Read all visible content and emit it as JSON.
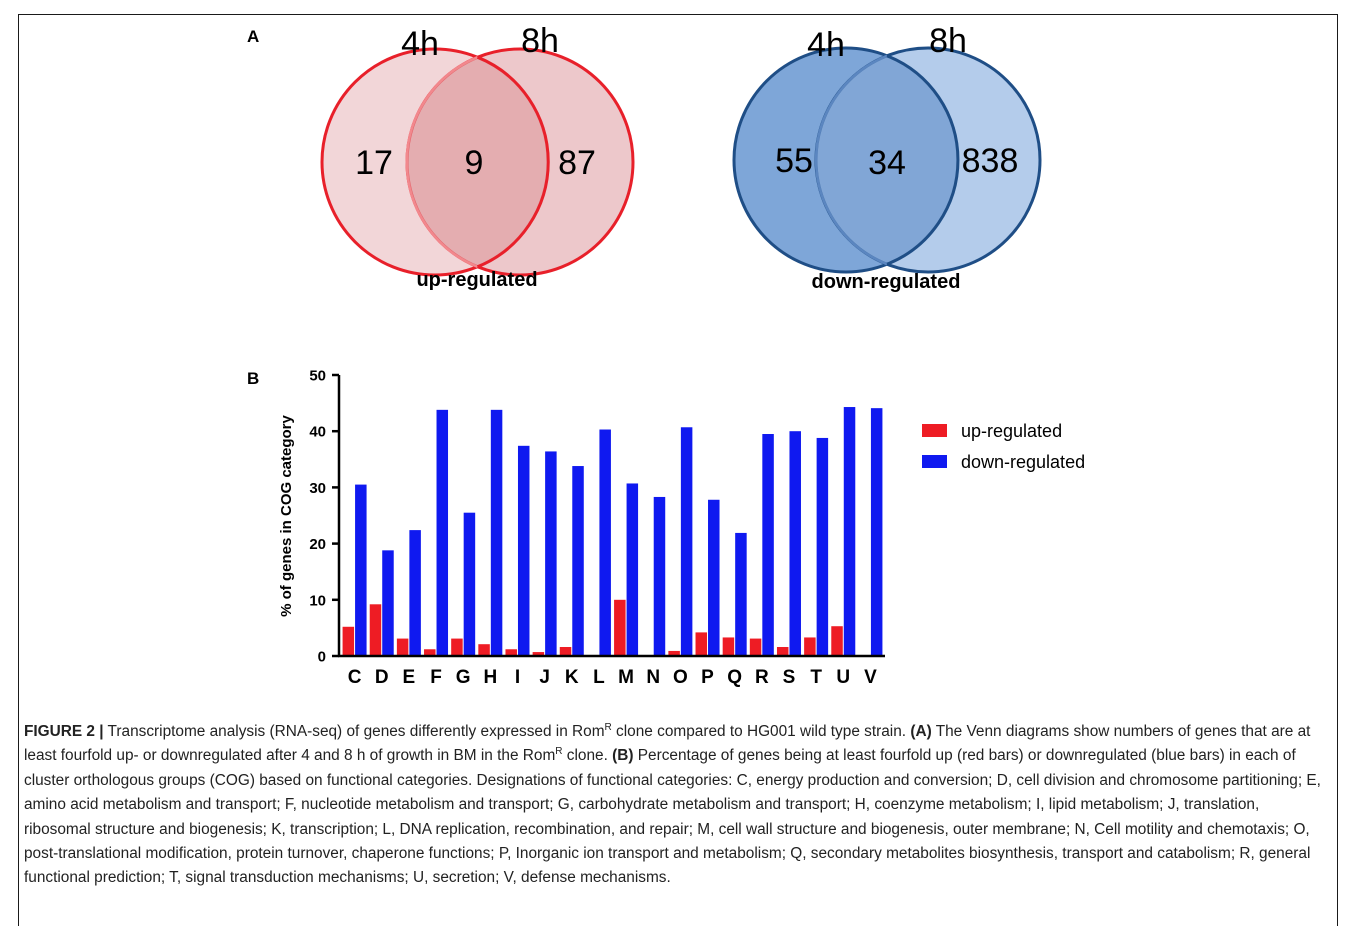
{
  "panel_a": {
    "label": "A",
    "venns": [
      {
        "left_title": "4h",
        "right_title": "8h",
        "left_only": "17",
        "overlap": "9",
        "right_only": "87",
        "caption": "up-regulated",
        "colors": {
          "left_fill": "#f2d6d8",
          "right_fill": "#e7b6ba",
          "overlap_fill": "#de9ea3",
          "stroke": "#e8202a"
        }
      },
      {
        "left_title": "4h",
        "right_title": "8h",
        "left_only": "55",
        "overlap": "34",
        "right_only": "838",
        "caption": "down-regulated",
        "colors": {
          "left_fill": "#7ea6d8",
          "right_fill": "#a7c3e7",
          "overlap_fill": "#6d96cc",
          "stroke": "#1f4e86"
        }
      }
    ]
  },
  "panel_b": {
    "label": "B",
    "chart_data": {
      "type": "bar",
      "categories": [
        "C",
        "D",
        "E",
        "F",
        "G",
        "H",
        "I",
        "J",
        "K",
        "L",
        "M",
        "N",
        "O",
        "P",
        "Q",
        "R",
        "S",
        "T",
        "U",
        "V"
      ],
      "series": [
        {
          "name": "up-regulated",
          "color": "#ee1c24",
          "values": [
            5.2,
            9.2,
            3.1,
            1.2,
            3.1,
            2.1,
            1.2,
            0.7,
            1.6,
            0,
            10.0,
            0,
            0.9,
            4.2,
            3.3,
            3.1,
            1.6,
            3.3,
            5.3,
            0
          ]
        },
        {
          "name": "down-regulated",
          "color": "#0f19f0",
          "values": [
            30.5,
            18.8,
            22.4,
            43.8,
            25.5,
            43.8,
            37.4,
            36.4,
            33.8,
            40.3,
            30.7,
            28.3,
            40.7,
            27.8,
            21.9,
            39.5,
            40.0,
            38.8,
            44.3,
            44.1
          ]
        }
      ],
      "ylabel": "% of genes in COG category",
      "ylim": [
        0,
        50
      ],
      "yticks": [
        "0",
        "10",
        "20",
        "30",
        "40",
        "50"
      ],
      "legend_position": "right"
    }
  },
  "caption": {
    "figure_label": "FIGURE 2 |",
    "intro_before_sup": " Transcriptome analysis (RNA-seq) of genes differently expressed in Rom",
    "sup_1": "R",
    "intro_after_sup": " clone compared to HG001 wild type strain. ",
    "a_label": "(A)",
    "a_before_sup": " The Venn diagrams show numbers of genes that are at least fourfold up- or downregulated after 4 and 8 h of growth in BM in the Rom",
    "sup_2": "R",
    "a_after_sup": " clone. ",
    "b_label": "(B)",
    "b_text": " Percentage of genes being at least fourfold up (red bars) or downregulated (blue bars) in each of cluster orthologous groups (COG) based on functional categories. Designations of functional categories: C, energy production and conversion; D, cell division and chromosome partitioning; E, amino acid metabolism and transport; F, nucleotide metabolism and transport; G, carbohydrate metabolism and transport; H, coenzyme metabolism; I, lipid metabolism; J, translation, ribosomal structure and biogenesis; K, transcription; L, DNA replication, recombination, and repair; M, cell wall structure and biogenesis, outer membrane; N, Cell motility and chemotaxis; O, post-translational modification, protein turnover, chaperone functions; P, Inorganic ion transport and metabolism; Q, secondary metabolites biosynthesis, transport and catabolism; R, general functional prediction; T, signal transduction mechanisms; U, secretion; V, defense mechanisms."
  }
}
